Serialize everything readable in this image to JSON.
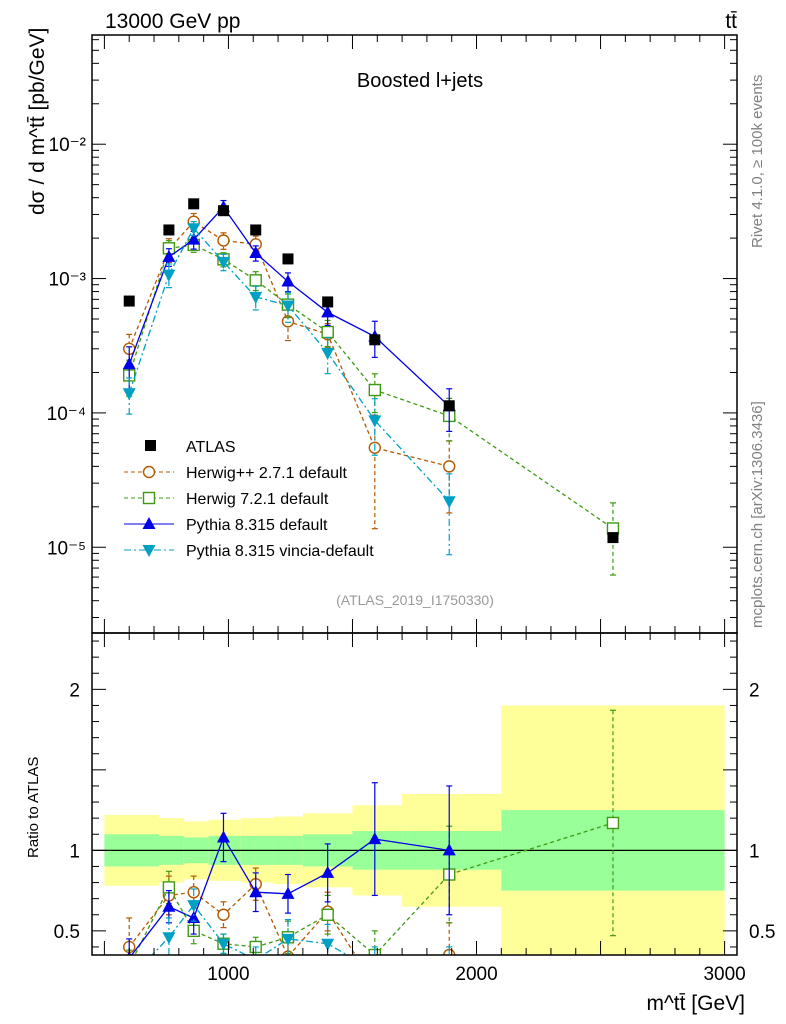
{
  "header": {
    "energy": "13000 GeV pp",
    "process": "tt̄"
  },
  "side": {
    "rivet": "Rivet 4.1.0, ≥ 100k events",
    "mcplots": "mcplots.cern.ch [arXiv:1306.3436]"
  },
  "chart_data": {
    "type": "scatter",
    "title": "Boosted l+jets",
    "analysis": "(ATLAS_2019_I1750330)",
    "ylabel": "dσ / d m^tt̄ [pb/GeV]",
    "xlabel": "m^tt̄ [GeV]",
    "ratio_ylabel": "Ratio to ATLAS",
    "xlim": [
      450,
      3050
    ],
    "ylim": [
      2.3e-06,
      0.065
    ],
    "ratio_ylim": [
      0.35,
      2.35
    ],
    "y_ticks": [
      {
        "value": 0.01,
        "label": "10⁻²"
      },
      {
        "value": 0.001,
        "label": "10⁻³"
      },
      {
        "value": 0.0001,
        "label": "10⁻⁴"
      },
      {
        "value": 1e-05,
        "label": "10⁻⁵"
      }
    ],
    "x_ticks": [
      {
        "value": 1000,
        "label": "1000"
      },
      {
        "value": 2000,
        "label": "2000"
      },
      {
        "value": 3000,
        "label": "3000"
      }
    ],
    "ratio_ticks": [
      {
        "value": 0.5,
        "label": "0.5"
      },
      {
        "value": 1,
        "label": "1"
      },
      {
        "value": 2,
        "label": "2"
      }
    ],
    "bins": [
      {
        "lo": 500,
        "hi": 720
      },
      {
        "lo": 720,
        "hi": 820
      },
      {
        "lo": 820,
        "hi": 920
      },
      {
        "lo": 920,
        "hi": 1050
      },
      {
        "lo": 1050,
        "hi": 1180
      },
      {
        "lo": 1180,
        "hi": 1300
      },
      {
        "lo": 1300,
        "hi": 1500
      },
      {
        "lo": 1500,
        "hi": 1700
      },
      {
        "lo": 1700,
        "hi": 2100
      },
      {
        "lo": 2100,
        "hi": 3000
      }
    ],
    "data": {
      "name": "ATLAS",
      "x": [
        600,
        760,
        860,
        980,
        1110,
        1240,
        1400,
        1590,
        1890,
        2550
      ],
      "y": [
        0.00068,
        0.0023,
        0.0036,
        0.0032,
        0.0023,
        0.0014,
        0.00067,
        0.00035,
        0.000113,
        1.18e-05
      ],
      "band_inner": [
        0.1,
        0.09,
        0.08,
        0.09,
        0.09,
        0.09,
        0.1,
        0.12,
        0.12,
        0.25
      ],
      "band_outer": [
        0.22,
        0.2,
        0.18,
        0.19,
        0.2,
        0.21,
        0.23,
        0.28,
        0.35,
        0.9
      ]
    },
    "series": [
      {
        "name": "Herwig++ 2.7.1 default",
        "color": "#b35900",
        "dash": "4,3",
        "marker": "circle-open",
        "x": [
          600,
          760,
          860,
          980,
          1110,
          1240,
          1400,
          1590,
          1890
        ],
        "y": [
          0.0003,
          0.00165,
          0.00265,
          0.00192,
          0.0018,
          0.00048,
          0.000385,
          5.5e-05,
          4e-05
        ],
        "err": [
          0.28,
          0.2,
          0.15,
          0.14,
          0.15,
          0.28,
          0.2,
          0.75,
          0.55
        ]
      },
      {
        "name": "Herwig 7.2.1 default",
        "color": "#3f9a12",
        "dash": "4,3",
        "marker": "square-open",
        "x": [
          600,
          760,
          860,
          980,
          1110,
          1240,
          1400,
          1590,
          1890,
          2550
        ],
        "y": [
          0.00019,
          0.00168,
          0.00178,
          0.00139,
          0.00097,
          0.00064,
          0.0004,
          0.000148,
          9.5e-05,
          1.38e-05
        ],
        "err": [
          0.3,
          0.14,
          0.12,
          0.12,
          0.16,
          0.2,
          0.22,
          0.32,
          0.35,
          0.55
        ]
      },
      {
        "name": "Pythia 8.315 default",
        "color": "#0000e6",
        "dash": "",
        "marker": "triangle-up",
        "x": [
          600,
          760,
          860,
          980,
          1110,
          1240,
          1400,
          1590,
          1890
        ],
        "y": [
          0.00023,
          0.00145,
          0.00195,
          0.0034,
          0.00155,
          0.00095,
          0.00056,
          0.00037,
          0.000112
        ],
        "err": [
          0.35,
          0.15,
          0.15,
          0.12,
          0.13,
          0.16,
          0.2,
          0.3,
          0.35
        ]
      },
      {
        "name": "Pythia 8.315 vincia-default",
        "color": "#00a0c4",
        "dash": "7,3,2,3",
        "marker": "triangle-down",
        "x": [
          600,
          760,
          860,
          980,
          1110,
          1240,
          1400,
          1590,
          1890
        ],
        "y": [
          0.00014,
          0.00107,
          0.00237,
          0.00133,
          0.00073,
          0.00063,
          0.00028,
          8.8e-05,
          2.2e-05
        ],
        "err": [
          0.3,
          0.2,
          0.12,
          0.14,
          0.2,
          0.25,
          0.3,
          0.45,
          0.6
        ]
      }
    ],
    "ratios": [
      {
        "x": [
          600,
          760,
          860,
          980,
          1110,
          1240,
          1400,
          1590,
          1890
        ],
        "y": [
          0.4,
          0.72,
          0.74,
          0.6,
          0.79,
          0.34,
          0.62,
          0.16,
          0.35
        ],
        "err": [
          0.18,
          0.12,
          0.1,
          0.08,
          0.1,
          0.15,
          0.12,
          0.15,
          0.2
        ]
      },
      {
        "x": [
          600,
          760,
          860,
          980,
          1110,
          1240,
          1400,
          1590,
          1890,
          2550
        ],
        "y": [
          0.28,
          0.77,
          0.5,
          0.42,
          0.4,
          0.46,
          0.6,
          0.35,
          0.85,
          1.17
        ],
        "err": [
          0.1,
          0.1,
          0.08,
          0.06,
          0.06,
          0.1,
          0.12,
          0.15,
          0.3,
          0.7
        ]
      },
      {
        "x": [
          600,
          760,
          860,
          980,
          1110,
          1240,
          1400,
          1590,
          1890
        ],
        "y": [
          0.33,
          0.65,
          0.58,
          1.08,
          0.74,
          0.73,
          0.86,
          1.07,
          1.0
        ],
        "err": [
          0.12,
          0.1,
          0.1,
          0.15,
          0.12,
          0.12,
          0.18,
          0.35,
          0.4
        ]
      },
      {
        "x": [
          600,
          760,
          860,
          980,
          1110,
          1240,
          1400,
          1590,
          1890
        ],
        "y": [
          0.2,
          0.46,
          0.66,
          0.42,
          0.32,
          0.45,
          0.42,
          0.25,
          0.2
        ],
        "err": [
          0.1,
          0.12,
          0.1,
          0.06,
          0.08,
          0.12,
          0.12,
          0.15,
          0.2
        ]
      }
    ]
  }
}
